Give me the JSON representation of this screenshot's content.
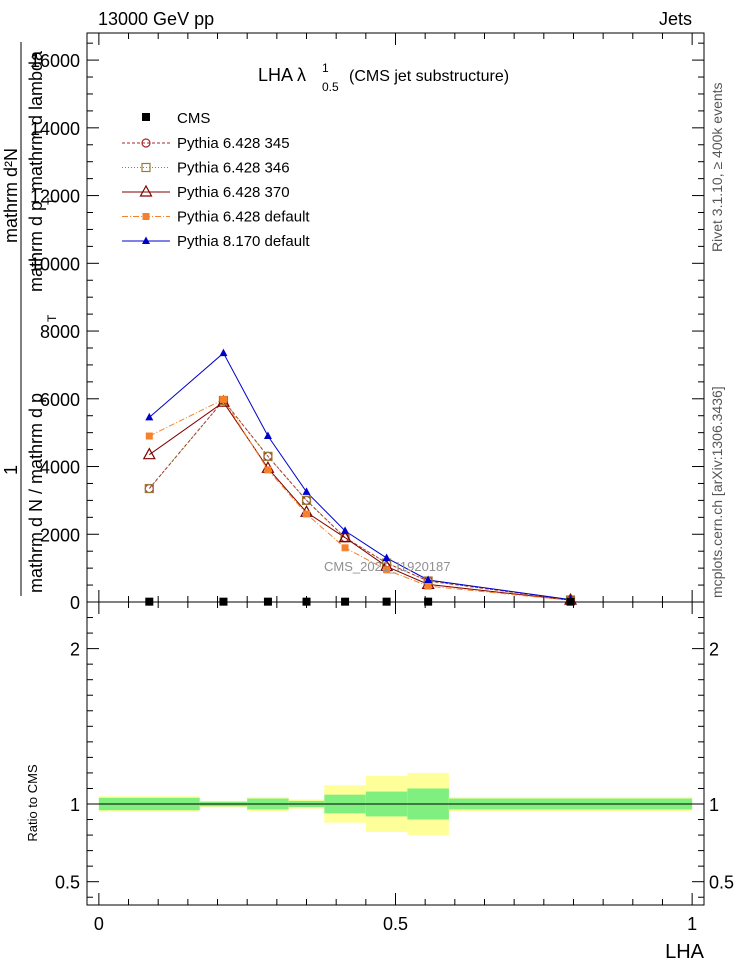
{
  "header": {
    "left": "13000 GeV pp",
    "right": "Jets"
  },
  "side_labels": {
    "rivet": "Rivet 3.1.10, ≥ 400k events",
    "mcplots": "mcplots.cern.ch [arXiv:1306.3436]"
  },
  "chart_data": {
    "type": "scatter",
    "title_main": "LHA λ",
    "title_sup": "1",
    "title_sub": "0.5",
    "title_rest": "(CMS jet substructure)",
    "watermark": "CMS_2021_I1920187",
    "xlabel": "LHA",
    "ylabel_top": {
      "numerator": "mathrm d²N",
      "denominator": "mathrm d p",
      "denominator_sub": "T",
      "denominator_rest": "mathrm d lambda",
      "prefix": "1",
      "prefix_den": "mathrm d N / mathrm d p",
      "prefix_den_sub": "T"
    },
    "ylabel_ratio": "Ratio to CMS",
    "xlim": [
      -0.02,
      1.02
    ],
    "ylim_main": [
      0,
      16800
    ],
    "ylim_ratio": [
      0.35,
      2.3
    ],
    "xticks": [
      "0",
      "0.5",
      "1"
    ],
    "xtick_values": [
      0,
      0.5,
      1
    ],
    "yticks_main": [
      "0",
      "2000",
      "4000",
      "6000",
      "8000",
      "10000",
      "12000",
      "14000",
      "16000"
    ],
    "yticks_main_values": [
      0,
      2000,
      4000,
      6000,
      8000,
      10000,
      12000,
      14000,
      16000
    ],
    "yticks_ratio": [
      "0.5",
      "1",
      "2"
    ],
    "yticks_ratio_values": [
      0.5,
      1,
      2
    ],
    "bin_edges": [
      0,
      0.17,
      0.25,
      0.32,
      0.38,
      0.45,
      0.52,
      0.59,
      1.0
    ],
    "cms": {
      "name": "CMS",
      "x": [
        0.085,
        0.21,
        0.285,
        0.35,
        0.415,
        0.485,
        0.555,
        0.795
      ],
      "y": [
        10,
        10,
        10,
        10,
        10,
        10,
        10,
        10
      ]
    },
    "ratio_band_inner": [
      0.04,
      0.015,
      0.035,
      0.02,
      0.06,
      0.08,
      0.1,
      0.035
    ],
    "ratio_band_outer": [
      0.05,
      0.02,
      0.045,
      0.03,
      0.12,
      0.18,
      0.2,
      0.045
    ],
    "series": [
      {
        "name": "Pythia 6.428 345",
        "color": "#a52a2a",
        "marker": "circle-open",
        "dash": "3,2",
        "x": [
          0.085,
          0.21,
          0.285,
          0.35,
          0.415,
          0.485,
          0.555,
          0.795
        ],
        "y": [
          3350,
          5950,
          4300,
          3000,
          1900,
          1150,
          620,
          60
        ]
      },
      {
        "name": "Pythia 6.428 346",
        "color": "#9b7a3a",
        "marker": "square-open",
        "dash": "1,2",
        "x": [
          0.085,
          0.21,
          0.285,
          0.35,
          0.415,
          0.485,
          0.555,
          0.795
        ],
        "y": [
          3350,
          5950,
          4300,
          3000,
          1900,
          1150,
          620,
          60
        ]
      },
      {
        "name": "Pythia 6.428 370",
        "color": "#800000",
        "marker": "triangle-open",
        "dash": "",
        "x": [
          0.085,
          0.21,
          0.285,
          0.35,
          0.415,
          0.485,
          0.555,
          0.795
        ],
        "y": [
          4350,
          5900,
          3950,
          2650,
          1900,
          1050,
          520,
          55
        ]
      },
      {
        "name": "Pythia 6.428 default",
        "color": "#f5812a",
        "marker": "square-filled",
        "dash": "6,2,1,2",
        "x": [
          0.085,
          0.21,
          0.285,
          0.35,
          0.415,
          0.485,
          0.555,
          0.795
        ],
        "y": [
          4900,
          5980,
          3900,
          2600,
          1600,
          950,
          470,
          50
        ]
      },
      {
        "name": "Pythia 8.170 default",
        "color": "#0000cc",
        "marker": "triangle-filled",
        "dash": "",
        "x": [
          0.085,
          0.21,
          0.285,
          0.35,
          0.415,
          0.485,
          0.555,
          0.795
        ],
        "y": [
          5450,
          7350,
          4900,
          3250,
          2100,
          1300,
          650,
          70
        ]
      }
    ],
    "band_colors": {
      "inner": "#7ff07f",
      "outer": "#ffff99"
    }
  }
}
